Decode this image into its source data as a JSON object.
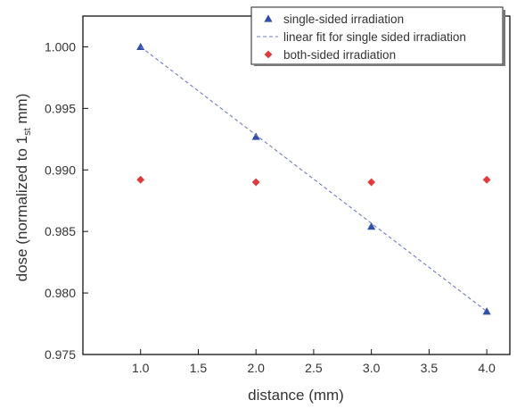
{
  "chart_data": {
    "type": "scatter",
    "xlabel": "distance (mm)",
    "ylabel": {
      "main": "dose (normalized to 1",
      "subscript": "st",
      "suffix": " mm)"
    },
    "xlim": [
      0.5,
      4.2
    ],
    "ylim": [
      0.975,
      1.0025
    ],
    "x_ticks": [
      1.0,
      1.5,
      2.0,
      2.5,
      3.0,
      3.5,
      4.0
    ],
    "x_tick_labels": [
      "1.0",
      "1.5",
      "2.0",
      "2.5",
      "3.0",
      "3.5",
      "4.0"
    ],
    "y_ticks": [
      0.975,
      0.98,
      0.985,
      0.99,
      0.995,
      1.0
    ],
    "y_tick_labels": [
      "0.975",
      "0.980",
      "0.985",
      "0.990",
      "0.995",
      "1.000"
    ],
    "legend_position": "top-right",
    "series": [
      {
        "name": "single-sided irradiation",
        "marker": "triangle",
        "color": "#2f4fa8",
        "x": [
          1.0,
          2.0,
          3.0,
          4.0
        ],
        "y": [
          1.0,
          0.9927,
          0.9854,
          0.9785
        ]
      },
      {
        "name": "linear fit for single sided irradiation",
        "marker": "dashed-line",
        "color": "#6d79c4",
        "x": [
          1.0,
          4.0
        ],
        "y": [
          1.0,
          0.9785
        ]
      },
      {
        "name": "both-sided irradiation",
        "marker": "diamond",
        "color": "#e03a3a",
        "x": [
          1.0,
          2.0,
          3.0,
          4.0
        ],
        "y": [
          0.9892,
          0.989,
          0.989,
          0.9892
        ]
      }
    ]
  }
}
